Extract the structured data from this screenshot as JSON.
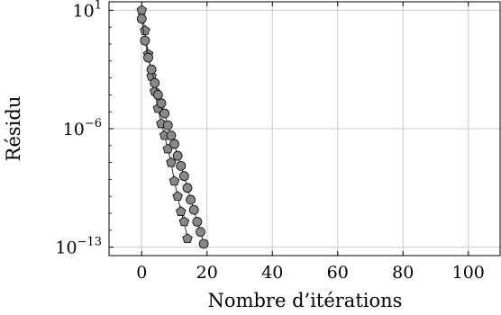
{
  "chart_data": {
    "type": "scatter",
    "xlabel": "Nombre d’itérations",
    "ylabel": "Résidu",
    "xlim": [
      -10,
      110
    ],
    "ylim": [
      -13.5,
      1.5
    ],
    "yscale": "log",
    "grid": true,
    "x_ticks": [
      "0",
      "20",
      "40",
      "60",
      "80",
      "100"
    ],
    "y_ticks": [
      {
        "base": "10",
        "exp": "1"
      },
      {
        "base": "10",
        "exp": "−6"
      },
      {
        "base": "10",
        "exp": "−13"
      }
    ],
    "series": [
      {
        "marker": "pentagon",
        "color": "#888888",
        "x": [
          0,
          1,
          2,
          3,
          4,
          5,
          6,
          7,
          8,
          9,
          10,
          11,
          12,
          13,
          14
        ],
        "log10_y": [
          1.0,
          -0.2,
          -1.6,
          -2.9,
          -3.8,
          -4.8,
          -5.7,
          -6.4,
          -7.2,
          -8.0,
          -9.1,
          -10.0,
          -10.9,
          -11.5,
          -12.5
        ]
      },
      {
        "marker": "circle",
        "color": "#888888",
        "x": [
          0,
          1,
          2,
          3,
          4,
          5,
          6,
          7,
          8,
          9,
          10,
          11,
          12,
          13,
          14,
          15,
          16,
          17,
          18,
          19
        ],
        "log10_y": [
          0.5,
          -0.8,
          -1.8,
          -2.5,
          -3.3,
          -4.0,
          -4.5,
          -5.1,
          -5.8,
          -6.4,
          -6.9,
          -7.6,
          -8.2,
          -8.8,
          -9.5,
          -10.2,
          -10.8,
          -11.5,
          -12.1,
          -12.8
        ]
      }
    ]
  }
}
